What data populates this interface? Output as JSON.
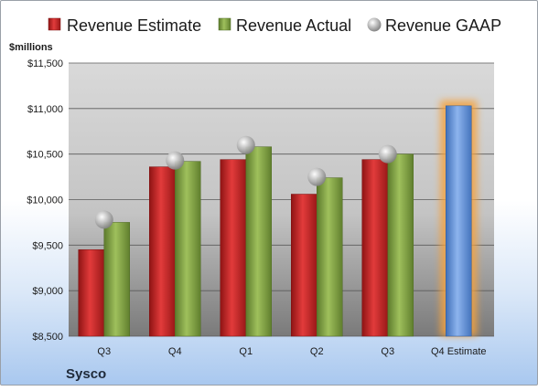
{
  "company": "Sysco",
  "chart_data": {
    "type": "bar",
    "ylabel": "$millions",
    "ylim": [
      8500,
      11500
    ],
    "yticks": [
      8500,
      9000,
      9500,
      10000,
      10500,
      11000,
      11500
    ],
    "ytick_labels": [
      "$8,500",
      "$9,000",
      "$9,500",
      "$10,000",
      "$10,500",
      "$11,000",
      "$11,500"
    ],
    "categories": [
      "Q3",
      "Q4",
      "Q1",
      "Q2",
      "Q3",
      "Q4 Estimate"
    ],
    "series": [
      {
        "name": "Revenue Estimate",
        "color": "#cc2a2a",
        "values": [
          9450,
          10360,
          10440,
          10060,
          10440,
          null
        ]
      },
      {
        "name": "Revenue Actual",
        "color": "#86a84a",
        "values": [
          9750,
          10420,
          10580,
          10240,
          10500,
          null
        ]
      },
      {
        "name": "Revenue GAAP",
        "color": "#a8a8a8",
        "values": [
          9780,
          10430,
          10600,
          10250,
          10500,
          null
        ]
      }
    ],
    "forecast": {
      "category": "Q4 Estimate",
      "value": 11030,
      "color": "#6d9be0",
      "glow": "#f5a23c"
    },
    "legend_position": "top",
    "grid": true
  }
}
